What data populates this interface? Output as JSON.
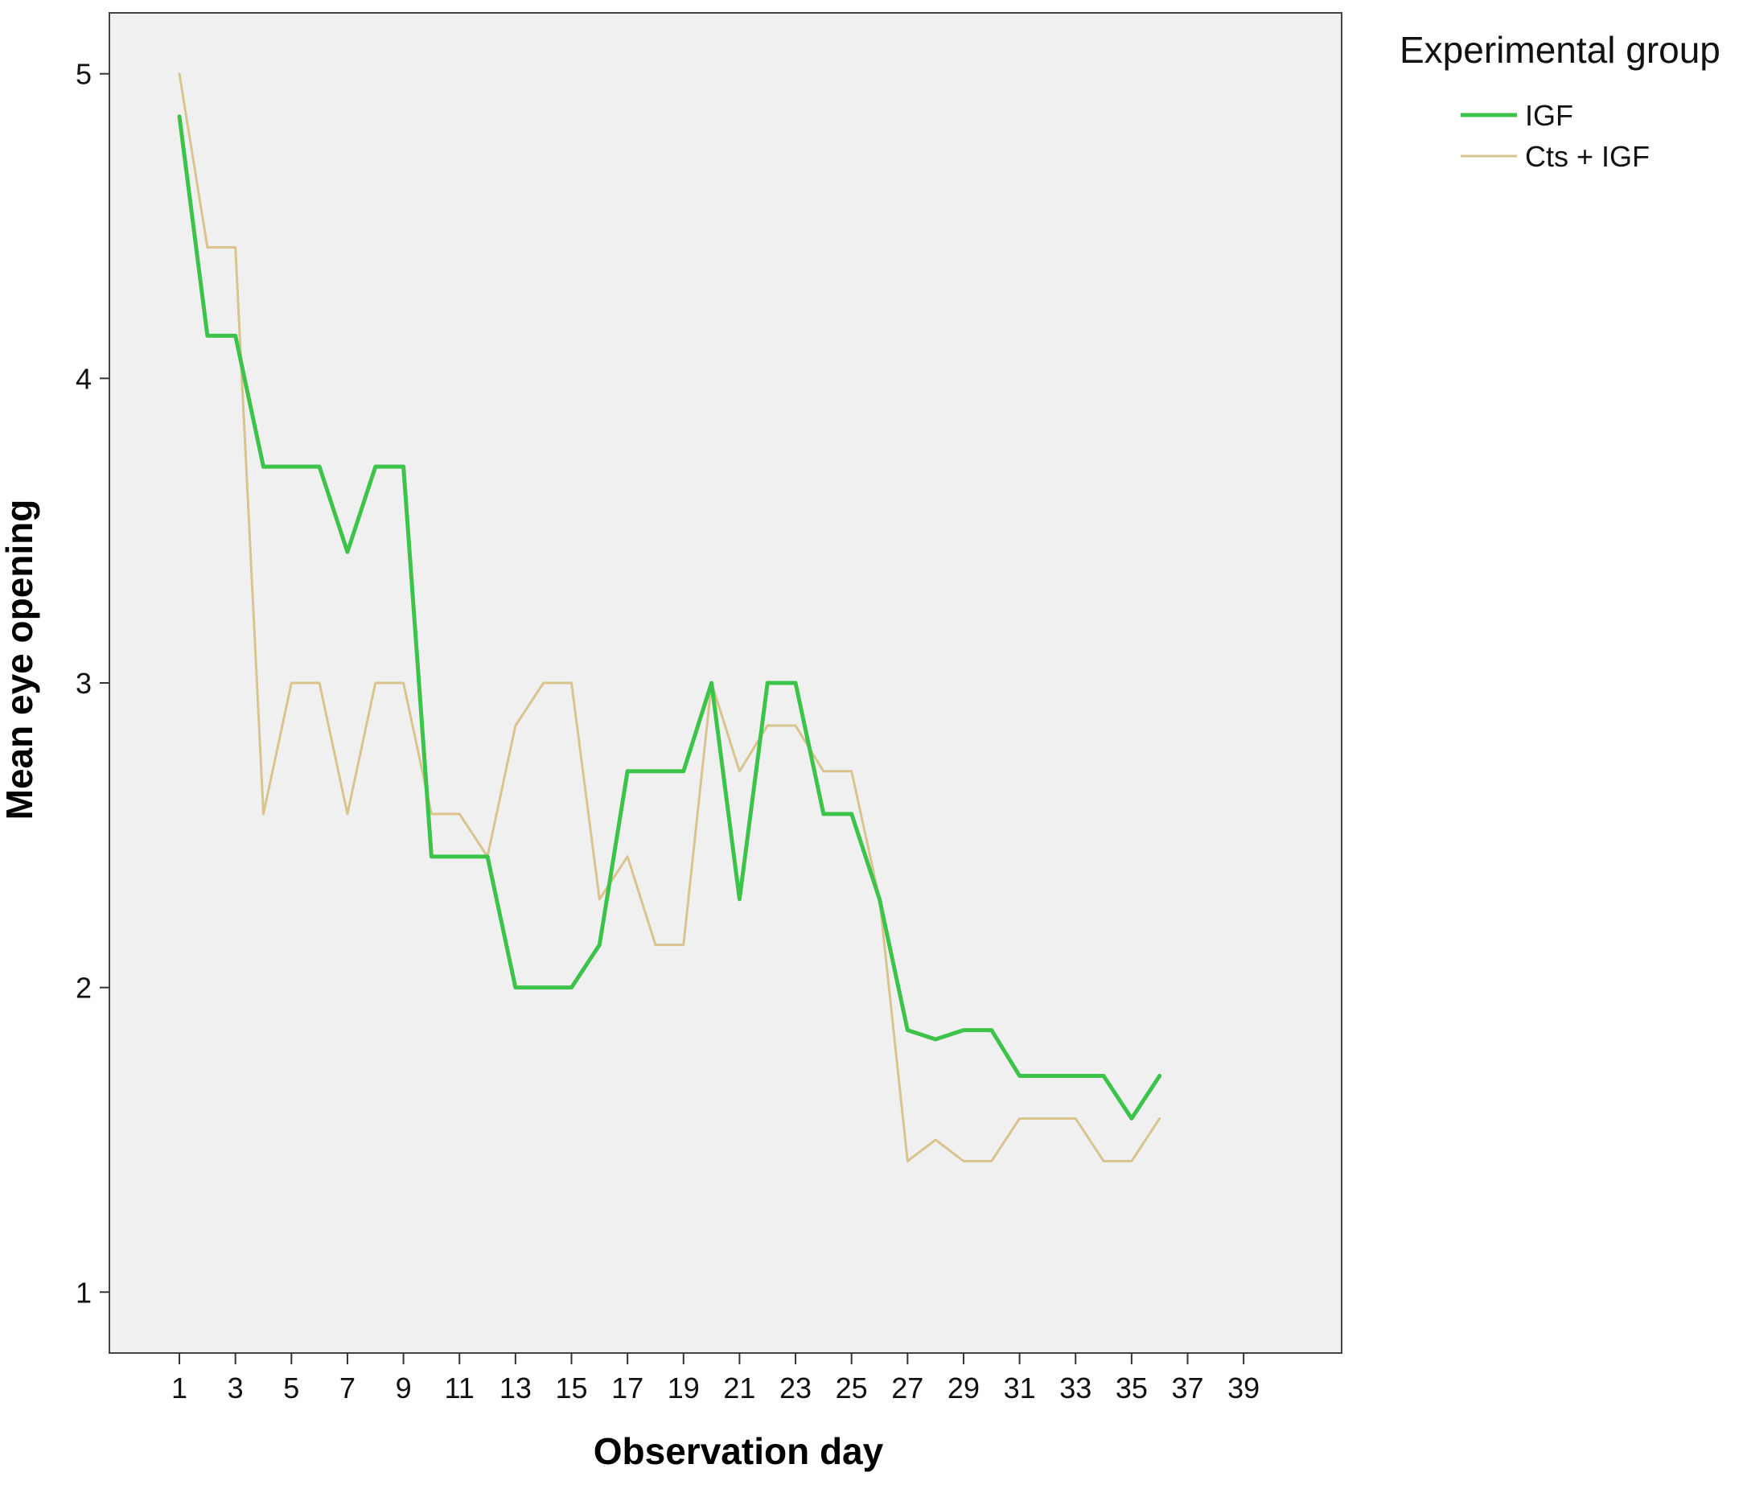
{
  "chart_data": {
    "type": "line",
    "title": "",
    "xlabel": "Observation day",
    "ylabel": "Mean eye opening",
    "xlim": [
      -1.5,
      42.5
    ],
    "ylim": [
      0.8,
      5.2
    ],
    "xticks": [
      "1",
      "3",
      "5",
      "7",
      "9",
      "11",
      "13",
      "15",
      "17",
      "19",
      "21",
      "23",
      "25",
      "27",
      "29",
      "31",
      "33",
      "35",
      "37",
      "39"
    ],
    "yticks": [
      "1",
      "2",
      "3",
      "4",
      "5"
    ],
    "grid": false,
    "legend": {
      "title": "Experimental group",
      "placement": "top-right-outside",
      "entries": [
        "IGF",
        "Cts + IGF"
      ]
    },
    "series": [
      {
        "name": "IGF",
        "color": "#3cc44a",
        "x": [
          1,
          2,
          3,
          4,
          5,
          6,
          7,
          8,
          9,
          10,
          11,
          12,
          13,
          14,
          15,
          16,
          17,
          18,
          19,
          20,
          21,
          22,
          23,
          24,
          25,
          26,
          27,
          28,
          29,
          30,
          31,
          32,
          33,
          34,
          35,
          36
        ],
        "values": [
          4.86,
          4.14,
          4.14,
          3.71,
          3.71,
          3.71,
          3.43,
          3.71,
          3.71,
          2.43,
          2.43,
          2.43,
          2.0,
          2.0,
          2.0,
          2.14,
          2.71,
          2.71,
          2.71,
          3.0,
          2.29,
          3.0,
          3.0,
          2.57,
          2.57,
          2.29,
          1.86,
          1.83,
          1.86,
          1.86,
          1.71,
          1.71,
          1.71,
          1.71,
          1.57,
          1.71
        ]
      },
      {
        "name": "Cts + IGF",
        "color": "#d9c48e",
        "x": [
          1,
          2,
          3,
          4,
          5,
          6,
          7,
          8,
          9,
          10,
          11,
          12,
          13,
          14,
          15,
          16,
          17,
          18,
          19,
          20,
          21,
          22,
          23,
          24,
          25,
          26,
          27,
          28,
          29,
          30,
          31,
          32,
          33,
          34,
          35,
          36
        ],
        "values": [
          5.0,
          4.43,
          4.43,
          2.57,
          3.0,
          3.0,
          2.57,
          3.0,
          3.0,
          2.57,
          2.57,
          2.43,
          2.86,
          3.0,
          3.0,
          2.29,
          2.43,
          2.14,
          2.14,
          3.0,
          2.71,
          2.86,
          2.86,
          2.71,
          2.71,
          2.29,
          1.43,
          1.5,
          1.43,
          1.43,
          1.57,
          1.57,
          1.57,
          1.43,
          1.43,
          1.57
        ]
      }
    ]
  }
}
